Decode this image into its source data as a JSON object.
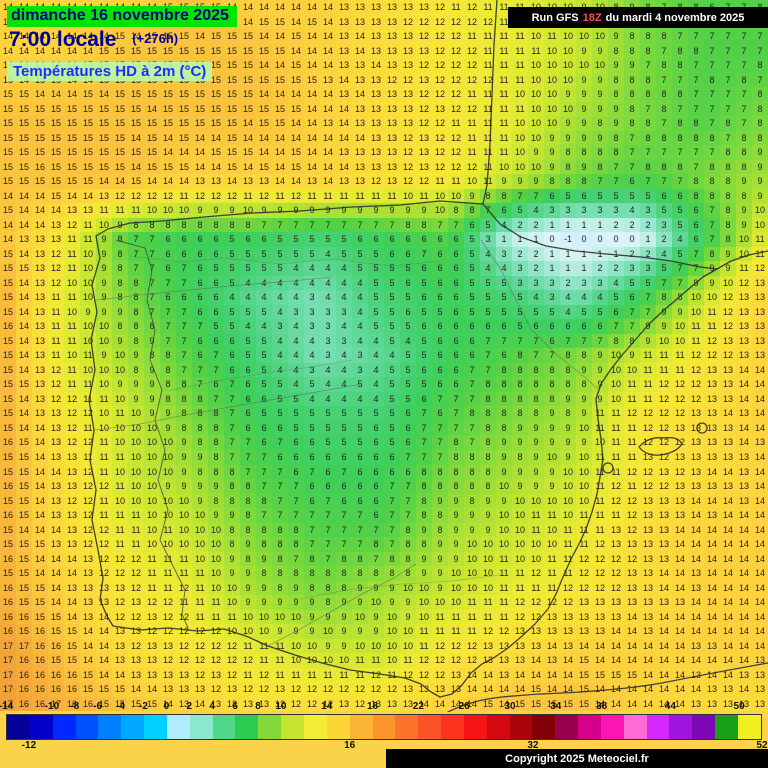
{
  "header": {
    "date": "dimanche 16 novembre 2025",
    "time": "7:00 locale",
    "offset": "(+276h)",
    "subtitle": "Températures HD à 2m (°C)"
  },
  "run_bar": {
    "prefix": "Run GFS",
    "run": "18Z",
    "suffix": "du mardi 4 novembre 2025"
  },
  "copyright": "Copyright 2025 Meteociel.fr",
  "colors": {
    "date_chip_bg": "#00e400",
    "date_chip_text": "#000080",
    "time_text": "#000099",
    "subtitle_text": "#1a2fff",
    "subtitle_chip_bg": "#baf7a6",
    "run_bar_bg": "#000000",
    "run_bar_text": "#ffffff",
    "run_accent": "#ff5050",
    "copyright_text": "#ffffff"
  },
  "map": {
    "rows": 49,
    "cols": 48,
    "field": [
      [
        14,
        14,
        14,
        15,
        14,
        14,
        13,
        12,
        11,
        10,
        8,
        7,
        7
      ],
      [
        14,
        14,
        15,
        15,
        15,
        14,
        13,
        12,
        11,
        10,
        8,
        7,
        7
      ],
      [
        15,
        15,
        15,
        15,
        15,
        14,
        13,
        12,
        11,
        9,
        8,
        7,
        8
      ],
      [
        15,
        15,
        15,
        14,
        14,
        14,
        13,
        12,
        10,
        8,
        7,
        8,
        9
      ],
      [
        15,
        12,
        7,
        6,
        6,
        5,
        6,
        7,
        1,
        -1,
        0,
        6,
        11
      ],
      [
        16,
        11,
        8,
        6,
        4,
        3,
        5,
        6,
        5,
        3,
        6,
        10,
        14
      ],
      [
        16,
        11,
        9,
        7,
        5,
        3,
        4,
        6,
        7,
        8,
        10,
        12,
        14
      ],
      [
        16,
        12,
        10,
        8,
        6,
        5,
        5,
        7,
        8,
        9,
        12,
        13,
        14
      ],
      [
        16,
        13,
        10,
        9,
        7,
        6,
        6,
        8,
        9,
        10,
        12,
        13,
        14
      ],
      [
        16,
        13,
        11,
        10,
        8,
        7,
        7,
        9,
        10,
        11,
        13,
        14,
        14
      ],
      [
        16,
        14,
        12,
        11,
        9,
        8,
        9,
        10,
        11,
        12,
        13,
        14,
        14
      ],
      [
        17,
        15,
        13,
        12,
        11,
        10,
        10,
        12,
        13,
        14,
        14,
        14,
        14
      ],
      [
        17,
        16,
        15,
        14,
        13,
        13,
        13,
        14,
        15,
        15,
        14,
        13,
        13
      ]
    ],
    "color_stops": [
      {
        "v": -2,
        "c": "#bfe9fb"
      },
      {
        "v": -1,
        "c": "#cfeefd"
      },
      {
        "v": 0,
        "c": "#dcf4f8"
      },
      {
        "v": 1,
        "c": "#c4efe6"
      },
      {
        "v": 2,
        "c": "#9ce8d0"
      },
      {
        "v": 3,
        "c": "#79dfb4"
      },
      {
        "v": 4,
        "c": "#5cd794"
      },
      {
        "v": 5,
        "c": "#46d272"
      },
      {
        "v": 6,
        "c": "#3ecf5a"
      },
      {
        "v": 7,
        "c": "#52d148"
      },
      {
        "v": 8,
        "c": "#7cd93c"
      },
      {
        "v": 9,
        "c": "#a6e034"
      },
      {
        "v": 10,
        "c": "#cce731"
      },
      {
        "v": 11,
        "c": "#e8ea32"
      },
      {
        "v": 12,
        "c": "#f7e636"
      },
      {
        "v": 13,
        "c": "#fcdd3a"
      },
      {
        "v": 14,
        "c": "#fdd23e"
      },
      {
        "v": 15,
        "c": "#fbc23e"
      },
      {
        "v": 16,
        "c": "#f7b03b"
      },
      {
        "v": 17,
        "c": "#f29f38"
      },
      {
        "v": 18,
        "c": "#ee8e36"
      }
    ]
  },
  "legend": {
    "min": -14,
    "max": 52,
    "step": 2,
    "colors": [
      "#050096",
      "#0400c8",
      "#0028ff",
      "#0050ff",
      "#0080ff",
      "#00a8ff",
      "#00d0ff",
      "#b0ecff",
      "#8ce8cc",
      "#50d88a",
      "#2ccc50",
      "#84d838",
      "#c8e430",
      "#f4ec34",
      "#fcd438",
      "#fcb434",
      "#fc9430",
      "#fc742c",
      "#fc5428",
      "#fc3420",
      "#f41414",
      "#d40810",
      "#ac040c",
      "#840008",
      "#98004c",
      "#d4008c",
      "#fc14b4",
      "#fc6cd4",
      "#d428fc",
      "#a014e0",
      "#7c08b4",
      "#18a018",
      "#f0f020"
    ],
    "ticks_top": [
      -14,
      -10,
      -8,
      -6,
      -4,
      -2,
      0,
      2,
      4,
      6,
      8,
      10,
      14,
      18,
      22,
      26,
      30,
      34,
      38,
      44,
      50
    ],
    "ticks_bottom": [
      -12,
      16,
      32,
      52
    ]
  }
}
